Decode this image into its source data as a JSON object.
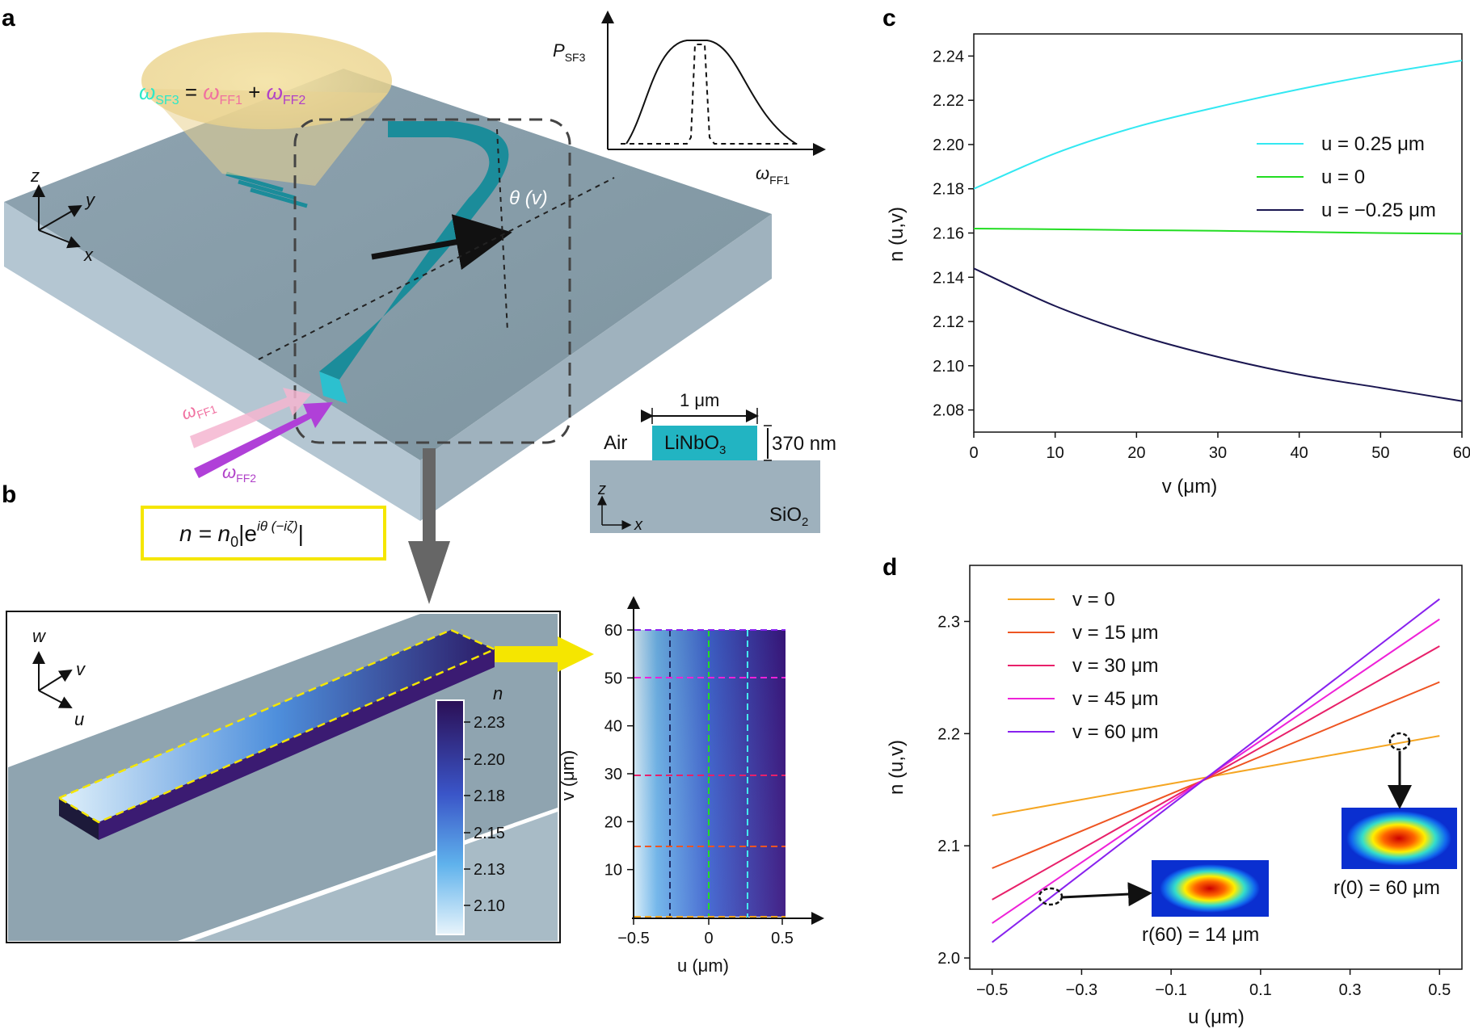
{
  "panels": {
    "a": "a",
    "b": "b",
    "c": "c",
    "d": "d"
  },
  "panel_a": {
    "omega_sf3": "ω",
    "sf3_sub": "SF3",
    "equals": " = ",
    "omega_ff1": "ω",
    "ff1_sub": "FF1",
    "plus": " + ",
    "omega_ff2": "ω",
    "ff2_sub": "FF2",
    "axis_z": "z",
    "axis_y": "y",
    "axis_x": "x",
    "theta_label": "θ (v)",
    "input_ff1": "ω",
    "input_ff1_sub": "FF1",
    "input_ff2": "ω",
    "input_ff2_sub": "FF2",
    "formula": "n = n",
    "formula_sub": "0",
    "formula_rest": "|e",
    "formula_sup": "iθ (−iζ)",
    "formula_end": "|",
    "inset_ylabel": "P",
    "inset_ylabel_sub": "SF3",
    "inset_xlabel": "ω",
    "inset_xlabel_sub": "FF1",
    "cross_width": "1 μm",
    "cross_height": "370 nm",
    "cross_air": "Air",
    "cross_core": "LiNbO",
    "cross_core_sub": "3",
    "cross_substrate": "SiO",
    "cross_substrate_sub": "2",
    "cross_axis_z": "z",
    "cross_axis_x": "x"
  },
  "panel_b": {
    "axis_w": "w",
    "axis_v": "v",
    "axis_u": "u",
    "colorbar_label": "n",
    "colorbar_ticks": [
      "2.23",
      "2.20",
      "2.18",
      "2.15",
      "2.13",
      "2.10"
    ],
    "map_xticks": [
      "−0.5",
      "0",
      "0.5"
    ],
    "map_yticks": [
      "60",
      "50",
      "40",
      "30",
      "20",
      "10"
    ],
    "map_xlabel": "u (μm)",
    "map_ylabel": "v (μm)"
  },
  "chart_data": [
    {
      "panel": "c",
      "type": "line",
      "xlabel": "v (μm)",
      "ylabel": "n (u,v)",
      "xlim": [
        0,
        60
      ],
      "ylim": [
        2.07,
        2.25
      ],
      "xticks": [
        "0",
        "10",
        "20",
        "30",
        "40",
        "50",
        "60"
      ],
      "yticks": [
        "2.08",
        "2.10",
        "2.12",
        "2.14",
        "2.16",
        "2.18",
        "2.20",
        "2.22",
        "2.24"
      ],
      "legend_position": "upper-right",
      "series": [
        {
          "name": "u = 0.25 μm",
          "color": "#33e8f2",
          "x": [
            0,
            10,
            20,
            30,
            40,
            50,
            60
          ],
          "y": [
            2.18,
            2.196,
            2.208,
            2.217,
            2.225,
            2.232,
            2.238
          ]
        },
        {
          "name": "u = 0",
          "color": "#22dd22",
          "x": [
            0,
            10,
            20,
            30,
            40,
            50,
            60
          ],
          "y": [
            2.162,
            2.1617,
            2.1613,
            2.161,
            2.1605,
            2.16,
            2.1597
          ]
        },
        {
          "name": "u = −0.25 μm",
          "color": "#1a1650",
          "x": [
            0,
            10,
            20,
            30,
            40,
            50,
            60
          ],
          "y": [
            2.144,
            2.127,
            2.114,
            2.104,
            2.096,
            2.09,
            2.084
          ]
        }
      ]
    },
    {
      "panel": "d",
      "type": "line",
      "xlabel": "u (μm)",
      "ylabel": "n (u,v)",
      "xlim": [
        -0.55,
        0.55
      ],
      "ylim": [
        1.99,
        2.35
      ],
      "xticks": [
        "−0.5",
        "−0.3",
        "−0.1",
        "0.1",
        "0.3",
        "0.5"
      ],
      "yticks": [
        "2.0",
        "2.1",
        "2.2",
        "2.3"
      ],
      "legend_position": "upper-left",
      "series": [
        {
          "name": "v = 0",
          "color": "#f5a623",
          "x": [
            -0.5,
            0.5
          ],
          "y": [
            2.127,
            2.198
          ]
        },
        {
          "name": "v = 15 μm",
          "color": "#ee5522",
          "x": [
            -0.5,
            0.5
          ],
          "y": [
            2.08,
            2.246
          ]
        },
        {
          "name": "v = 30 μm",
          "color": "#e8206a",
          "x": [
            -0.5,
            0.5
          ],
          "y": [
            2.052,
            2.278
          ]
        },
        {
          "name": "v = 45 μm",
          "color": "#ee22d8",
          "x": [
            -0.5,
            0.5
          ],
          "y": [
            2.031,
            2.302
          ]
        },
        {
          "name": "v = 60 μm",
          "color": "#8822ee",
          "x": [
            -0.5,
            0.5
          ],
          "y": [
            2.014,
            2.32
          ]
        }
      ],
      "annotations": [
        "r(60) = 14 μm",
        "r(0) = 60 μm"
      ]
    }
  ],
  "annot_r60": "r(60) = 14 μm",
  "annot_r0": "r(0) = 60 μm"
}
